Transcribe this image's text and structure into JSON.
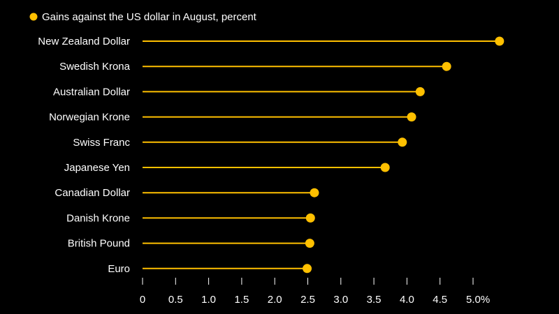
{
  "chart_data": {
    "type": "lollipop",
    "legend": "Gains against the US dollar in August, percent",
    "categories": [
      "New Zealand Dollar",
      "Swedish Krona",
      "Australian Dollar",
      "Norwegian Krone",
      "Swiss Franc",
      "Japanese Yen",
      "Canadian Dollar",
      "Danish Krone",
      "British Pound",
      "Euro"
    ],
    "values": [
      5.4,
      4.6,
      4.2,
      4.07,
      3.93,
      3.67,
      2.6,
      2.54,
      2.53,
      2.49
    ],
    "ticks": [
      0,
      0.5,
      1.0,
      1.5,
      2.0,
      2.5,
      3.0,
      3.5,
      4.0,
      4.5,
      5.0
    ],
    "tick_labels": [
      "0",
      "0.5",
      "1.0",
      "1.5",
      "2.0",
      "2.5",
      "3.0",
      "3.5",
      "4.0",
      "4.5",
      "5.0%"
    ],
    "xlim": [
      0,
      5.0
    ],
    "series_color": "#ffc000",
    "background": "#000000",
    "text_color": "#ffffff"
  }
}
